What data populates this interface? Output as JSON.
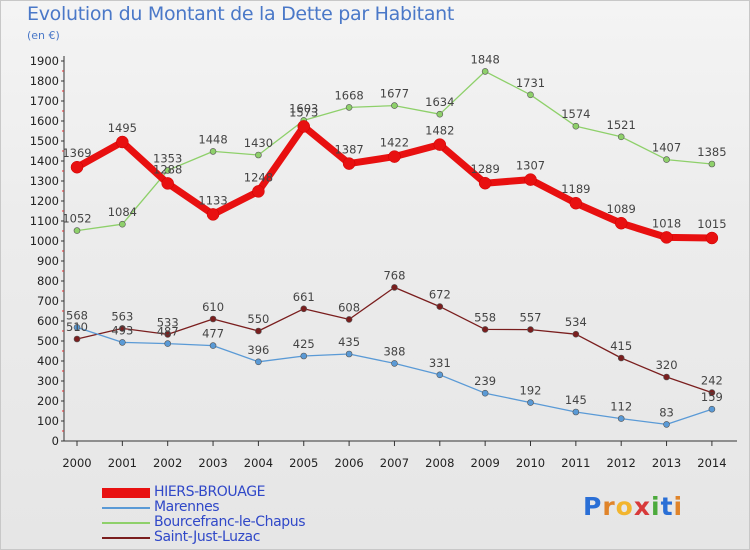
{
  "title": "Evolution du Montant de la Dette par Habitant",
  "subtitle": "(en €)",
  "logo": "Proxiti",
  "chart_data": {
    "type": "line",
    "x": [
      "2000",
      "2001",
      "2002",
      "2003",
      "2004",
      "2005",
      "2006",
      "2007",
      "2008",
      "2009",
      "2010",
      "2011",
      "2012",
      "2013",
      "2014"
    ],
    "yticks": [
      0,
      100,
      200,
      300,
      400,
      500,
      600,
      700,
      800,
      900,
      1000,
      1100,
      1200,
      1300,
      1400,
      1500,
      1600,
      1700,
      1800,
      1900
    ],
    "ylim": [
      0,
      1900
    ],
    "grid": false,
    "legend_position": "bottom-left",
    "series": [
      {
        "name": "Saint-Just-Luzac",
        "color": "#7a1e1e",
        "values": [
          510,
          563,
          533,
          610,
          550,
          661,
          608,
          768,
          672,
          558,
          557,
          534,
          415,
          320,
          242
        ],
        "labels": [
          "510",
          "563",
          "533",
          "610",
          "550",
          "661",
          "608",
          "768",
          "672",
          "558",
          "557",
          "534",
          "415",
          "320",
          "242"
        ]
      },
      {
        "name": "Marennes",
        "color": "#5a9ad6",
        "values": [
          568,
          493,
          487,
          477,
          396,
          425,
          435,
          388,
          331,
          239,
          192,
          145,
          112,
          83,
          159
        ],
        "labels": [
          "568",
          "493",
          "487",
          "477",
          "396",
          "425",
          "435",
          "388",
          "331",
          "239",
          "192",
          "145",
          "112",
          "83",
          "159"
        ]
      },
      {
        "name": "Bourcefranc-le-Chapus",
        "color": "#8ed06a",
        "values": [
          1052,
          1084,
          1353,
          1448,
          1430,
          1603,
          1668,
          1677,
          1634,
          1848,
          1731,
          1574,
          1521,
          1407,
          1385
        ],
        "labels": [
          "1052",
          "1084",
          "1353",
          "1448",
          "1430",
          "1603",
          "1668",
          "1677",
          "1634",
          "1848",
          "1731",
          "1574",
          "1521",
          "1407",
          "1385"
        ]
      },
      {
        "name": "HIERS-BROUAGE",
        "color": "#e81010",
        "values": [
          1369,
          1495,
          1288,
          1133,
          1248,
          1573,
          1387,
          1422,
          1482,
          1289,
          1307,
          1189,
          1089,
          1018,
          1015
        ],
        "labels": [
          "1369",
          "1495",
          "1288",
          "1133",
          "1248",
          "1573",
          "1387",
          "1422",
          "1482",
          "1289",
          "1307",
          "1189",
          "1089",
          "1018",
          "1015"
        ]
      }
    ]
  },
  "legend": [
    {
      "label": "HIERS-BROUAGE",
      "color": "#e81010"
    },
    {
      "label": "Marennes",
      "color": "#5a9ad6"
    },
    {
      "label": "Bourcefranc-le-Chapus",
      "color": "#8ed06a"
    },
    {
      "label": "Saint-Just-Luzac",
      "color": "#7a1e1e"
    }
  ]
}
